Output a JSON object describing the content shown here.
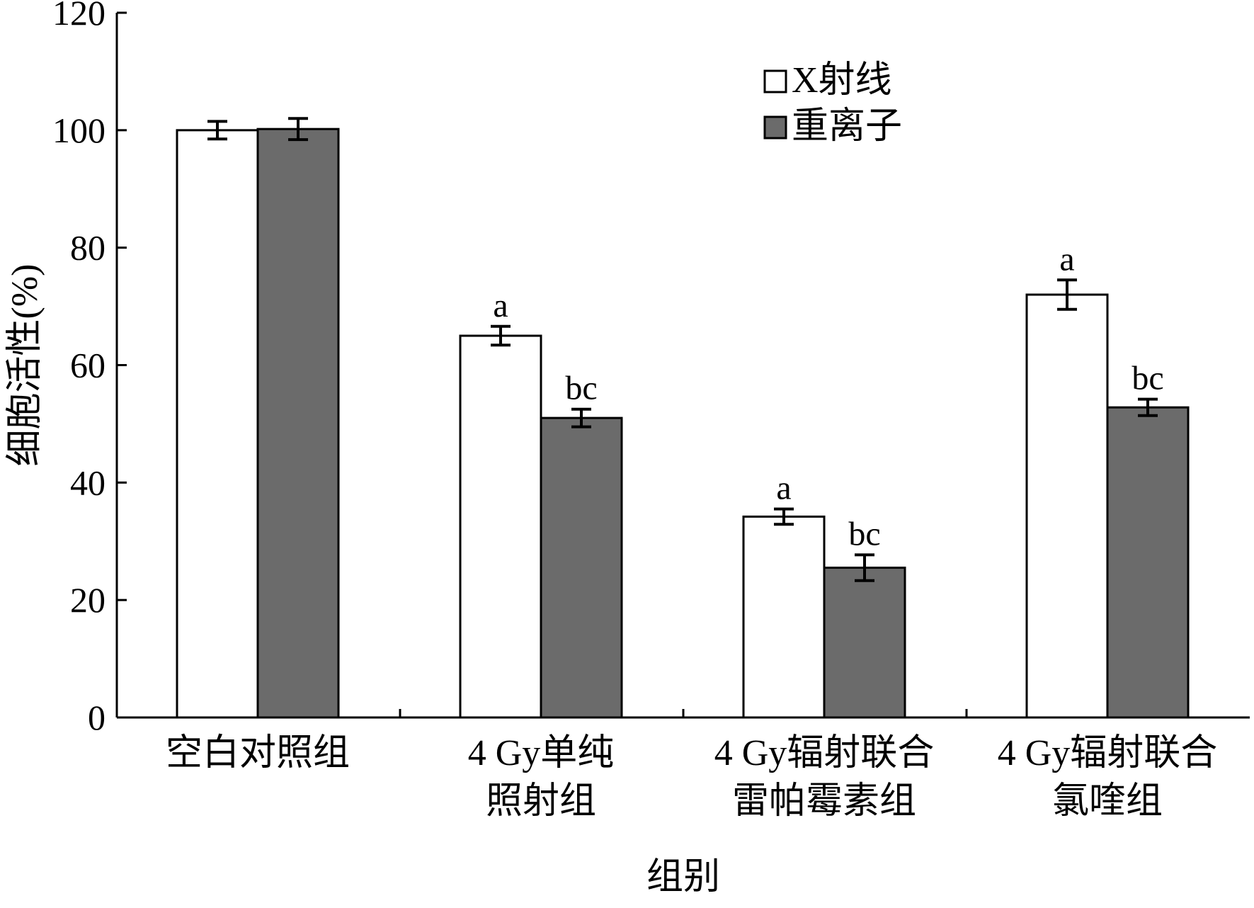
{
  "chart_data": {
    "type": "bar",
    "title": "",
    "xlabel": "组别",
    "ylabel": "细胞活性(%)",
    "ylim": [
      0,
      120
    ],
    "yticks": [
      0,
      20,
      40,
      60,
      80,
      100,
      120
    ],
    "grid": false,
    "legend_position": "top-right",
    "categories": [
      [
        "空白对照组"
      ],
      [
        "4 Gy单纯",
        "照射组"
      ],
      [
        "4 Gy辐射联合",
        "雷帕霉素组"
      ],
      [
        "4 Gy辐射联合",
        "氯喹组"
      ]
    ],
    "series": [
      {
        "name": "X射线",
        "color": "#ffffff",
        "values": [
          100,
          65,
          34.2,
          72
        ],
        "errors": [
          1.5,
          1.6,
          1.3,
          2.5
        ],
        "labels": [
          "",
          "a",
          "a",
          "a"
        ]
      },
      {
        "name": "重离子",
        "color": "#6b6b6b",
        "values": [
          100.2,
          51,
          25.5,
          52.8
        ],
        "errors": [
          1.8,
          1.5,
          2.2,
          1.4
        ],
        "labels": [
          "",
          "bc",
          "bc",
          "bc"
        ]
      }
    ]
  }
}
